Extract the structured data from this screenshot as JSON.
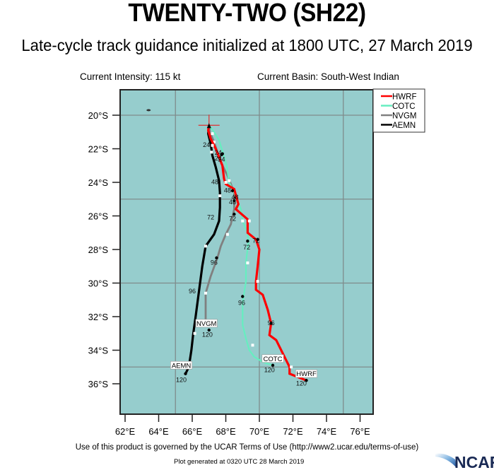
{
  "header": {
    "title": "TWENTY-TWO (SH22)",
    "subtitle": "Late-cycle track guidance initialized at 1800 UTC, 27 March 2019",
    "intensity": "Current Intensity: 115 kt",
    "basin": "Current Basin: South-West Indian"
  },
  "footer": {
    "terms": "Use of this product is governed by the UCAR Terms of Use (http://www2.ucar.edu/terms-of-use)",
    "generated": "Plot generated at 0320 UTC   28 March 2019",
    "logo_text": "NCAR"
  },
  "colors": {
    "ocean": "#96cdcd",
    "grid": "#7f8c8c",
    "frame": "#222222",
    "HWRF": "#ff0000",
    "COTC": "#66eec0",
    "NVGM": "#808080",
    "AEMN": "#000000"
  },
  "chart_data": {
    "type": "map",
    "title": "TWENTY-TWO (SH22)",
    "subtitle": "Late-cycle track guidance initialized at 1800 UTC, 27 March 2019",
    "extent": {
      "lon_min": 61.7,
      "lon_max": 76.8,
      "lat_min": -37.8,
      "lat_max": -18.5
    },
    "x_ticks": [
      "62°E",
      "64°E",
      "66°E",
      "68°E",
      "70°E",
      "72°E",
      "74°E",
      "76°E"
    ],
    "x_tick_values": [
      62,
      64,
      66,
      68,
      70,
      72,
      74,
      76
    ],
    "y_ticks": [
      "20°S",
      "22°S",
      "24°S",
      "26°S",
      "28°S",
      "30°S",
      "32°S",
      "34°S",
      "36°S"
    ],
    "y_tick_values": [
      -20,
      -22,
      -24,
      -26,
      -28,
      -30,
      -32,
      -34,
      -36
    ],
    "grid_lon": [
      65,
      70,
      75
    ],
    "grid_lat": [
      -20,
      -25,
      -30,
      -35
    ],
    "current_position": {
      "lon": 67.0,
      "lat": -20.6
    },
    "island": {
      "lon": 63.4,
      "lat": -19.7
    },
    "legend": [
      "HWRF",
      "COTC",
      "NVGM",
      "AEMN"
    ],
    "series": [
      {
        "name": "HWRF",
        "points": [
          [
            67.0,
            -20.6
          ],
          [
            66.95,
            -20.9
          ],
          [
            67.1,
            -21.4
          ],
          [
            67.4,
            -22.0
          ],
          [
            67.6,
            -22.5
          ],
          [
            67.8,
            -23.0
          ],
          [
            67.9,
            -23.8
          ],
          [
            68.0,
            -24.1
          ],
          [
            68.5,
            -24.4
          ],
          [
            68.75,
            -25.3
          ],
          [
            68.6,
            -25.6
          ],
          [
            69.3,
            -26.2
          ],
          [
            69.3,
            -27.0
          ],
          [
            69.8,
            -27.4
          ],
          [
            70.0,
            -28.0
          ],
          [
            69.9,
            -29.0
          ],
          [
            69.8,
            -29.9
          ],
          [
            69.8,
            -30.4
          ],
          [
            70.2,
            -30.7
          ],
          [
            70.5,
            -31.6
          ],
          [
            70.7,
            -32.4
          ],
          [
            70.6,
            -33.1
          ],
          [
            71.0,
            -33.4
          ],
          [
            71.5,
            -34.4
          ],
          [
            71.8,
            -35.0
          ],
          [
            71.8,
            -35.4
          ],
          [
            72.3,
            -35.6
          ],
          [
            72.8,
            -35.8
          ]
        ],
        "labels": [
          {
            "text": "24",
            "lon": 67.55,
            "lat": -22.35
          },
          {
            "text": "48",
            "lon": 68.1,
            "lat": -24.6
          },
          {
            "text": "72",
            "lon": 69.8,
            "lat": -27.6
          },
          {
            "text": "96",
            "lon": 70.7,
            "lat": -32.5
          },
          {
            "text": "120",
            "lon": 72.5,
            "lat": -36.1
          }
        ],
        "dots": [
          [
            67.75,
            -22.35
          ],
          [
            68.4,
            -24.5
          ],
          [
            69.9,
            -27.4
          ],
          [
            70.7,
            -32.4
          ],
          [
            72.8,
            -35.8
          ]
        ],
        "open_dots": [
          [
            67.2,
            -21.8
          ],
          [
            68.0,
            -24.0
          ],
          [
            69.4,
            -26.3
          ],
          [
            69.9,
            -29.9
          ],
          [
            71.9,
            -35.0
          ]
        ],
        "end_label": {
          "text": "HWRF",
          "lon": 72.8,
          "lat": -35.5
        }
      },
      {
        "name": "COTC",
        "points": [
          [
            67.0,
            -20.6
          ],
          [
            67.3,
            -21.0
          ],
          [
            67.6,
            -21.5
          ],
          [
            67.85,
            -22.3
          ],
          [
            68.05,
            -23.0
          ],
          [
            68.2,
            -24.0
          ],
          [
            68.5,
            -24.6
          ],
          [
            68.9,
            -25.6
          ],
          [
            69.0,
            -26.3
          ],
          [
            69.3,
            -27.0
          ],
          [
            69.35,
            -27.5
          ],
          [
            69.2,
            -28.8
          ],
          [
            69.2,
            -29.9
          ],
          [
            69.0,
            -31.2
          ],
          [
            69.0,
            -32.5
          ],
          [
            69.2,
            -33.3
          ],
          [
            69.4,
            -34.0
          ],
          [
            69.7,
            -34.4
          ],
          [
            70.2,
            -34.7
          ],
          [
            70.8,
            -34.9
          ]
        ],
        "labels": [
          {
            "text": "24",
            "lon": 67.75,
            "lat": -22.75
          },
          {
            "text": "48",
            "lon": 68.55,
            "lat": -25.0
          },
          {
            "text": "72",
            "lon": 69.25,
            "lat": -28.0
          },
          {
            "text": "96",
            "lon": 68.95,
            "lat": -31.3
          },
          {
            "text": "120",
            "lon": 70.6,
            "lat": -35.3
          }
        ],
        "dots": [
          [
            67.8,
            -22.3
          ],
          [
            68.6,
            -24.9
          ],
          [
            69.3,
            -27.5
          ],
          [
            69.0,
            -30.8
          ],
          [
            70.8,
            -34.9
          ]
        ],
        "open_dots": [
          [
            67.2,
            -21.1
          ],
          [
            68.2,
            -23.9
          ],
          [
            69.0,
            -26.3
          ],
          [
            69.3,
            -28.8
          ],
          [
            69.6,
            -33.7
          ]
        ],
        "end_label": {
          "text": "COTC",
          "lon": 70.8,
          "lat": -34.6
        }
      },
      {
        "name": "NVGM",
        "points": [
          [
            67.0,
            -20.6
          ],
          [
            67.05,
            -21.0
          ],
          [
            67.3,
            -21.6
          ],
          [
            67.5,
            -22.2
          ],
          [
            67.7,
            -22.8
          ],
          [
            68.1,
            -23.6
          ],
          [
            68.5,
            -24.6
          ],
          [
            68.5,
            -25.1
          ],
          [
            68.5,
            -25.6
          ],
          [
            68.3,
            -26.5
          ],
          [
            68.0,
            -27.1
          ],
          [
            67.7,
            -27.8
          ],
          [
            67.5,
            -28.5
          ],
          [
            67.1,
            -29.6
          ],
          [
            66.8,
            -30.6
          ],
          [
            66.8,
            -31.5
          ],
          [
            66.8,
            -32.4
          ]
        ],
        "labels": [
          {
            "text": "24",
            "lon": 67.55,
            "lat": -22.7
          },
          {
            "text": "48",
            "lon": 68.4,
            "lat": -25.3
          },
          {
            "text": "72",
            "lon": 68.4,
            "lat": -26.3
          },
          {
            "text": "96",
            "lon": 67.3,
            "lat": -28.9
          },
          {
            "text": "120",
            "lon": 66.9,
            "lat": -33.2
          }
        ],
        "dots": [
          [
            67.6,
            -22.5
          ],
          [
            68.5,
            -25.1
          ],
          [
            68.5,
            -25.9
          ],
          [
            67.45,
            -28.5
          ],
          [
            67.0,
            -32.8
          ]
        ],
        "open_dots": [
          [
            67.3,
            -21.6
          ],
          [
            68.1,
            -27.1
          ],
          [
            66.8,
            -30.6
          ]
        ],
        "end_label": {
          "text": "NVGM",
          "lon": 66.85,
          "lat": -32.5
        }
      },
      {
        "name": "AEMN",
        "points": [
          [
            67.0,
            -20.6
          ],
          [
            66.95,
            -21.1
          ],
          [
            67.1,
            -21.7
          ],
          [
            67.2,
            -22.4
          ],
          [
            67.4,
            -23.1
          ],
          [
            67.6,
            -23.9
          ],
          [
            67.65,
            -24.6
          ],
          [
            67.65,
            -25.5
          ],
          [
            67.6,
            -26.3
          ],
          [
            67.3,
            -27.1
          ],
          [
            66.8,
            -27.8
          ],
          [
            66.6,
            -29.0
          ],
          [
            66.4,
            -30.5
          ],
          [
            66.2,
            -32.0
          ],
          [
            66.05,
            -33.1
          ],
          [
            65.95,
            -34.0
          ],
          [
            65.8,
            -35.0
          ],
          [
            65.6,
            -35.4
          ]
        ],
        "labels": [
          {
            "text": "24",
            "lon": 66.85,
            "lat": -21.9
          },
          {
            "text": "48",
            "lon": 67.35,
            "lat": -24.1
          },
          {
            "text": "72",
            "lon": 67.1,
            "lat": -26.2
          },
          {
            "text": "96",
            "lon": 66.0,
            "lat": -30.6
          },
          {
            "text": "120",
            "lon": 65.35,
            "lat": -35.9
          }
        ],
        "dots": [
          [
            65.6,
            -35.4
          ]
        ],
        "open_dots": [
          [
            67.15,
            -22.2
          ],
          [
            67.65,
            -24.8
          ],
          [
            66.8,
            -27.8
          ],
          [
            66.15,
            -33.0
          ]
        ],
        "end_label": {
          "text": "AEMN",
          "lon": 65.35,
          "lat": -35.0
        }
      }
    ]
  }
}
